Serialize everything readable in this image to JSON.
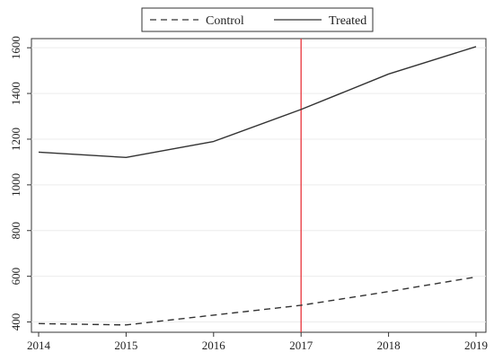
{
  "chart_data": {
    "type": "line",
    "x": [
      2014,
      2015,
      2016,
      2017,
      2018,
      2019
    ],
    "series": [
      {
        "name": "Control",
        "style": "dashed",
        "color": "#333333",
        "values": [
          393,
          387,
          430,
          473,
          533,
          597
        ]
      },
      {
        "name": "Treated",
        "style": "solid",
        "color": "#333333",
        "values": [
          1143,
          1120,
          1190,
          1330,
          1485,
          1605
        ]
      }
    ],
    "xticks": [
      "2014",
      "2015",
      "2016",
      "2017",
      "2018",
      "2019"
    ],
    "yticks": [
      "400",
      "600",
      "800",
      "1000",
      "1200",
      "1400",
      "1600"
    ],
    "xlim": [
      2014,
      2019
    ],
    "ylim": [
      355,
      1640
    ],
    "reference_line": {
      "x": 2017,
      "color": "#e8343a"
    },
    "grid": true,
    "legend_position": "top-center"
  }
}
